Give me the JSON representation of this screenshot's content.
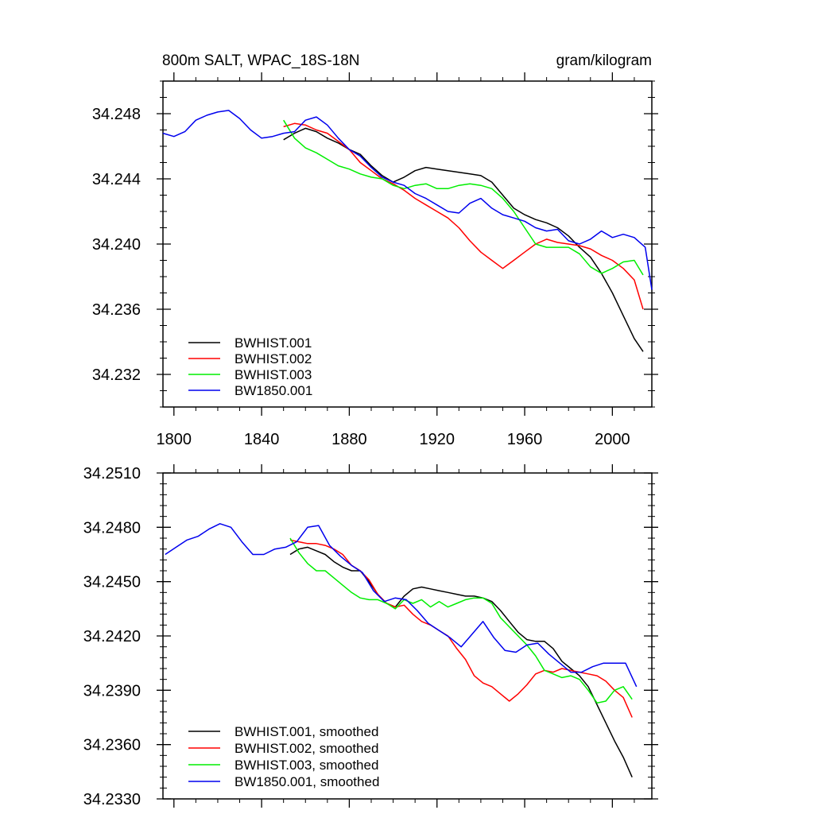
{
  "header": {
    "left": "800m SALT, WPAC_18S-18N",
    "right": "gram/kilogram"
  },
  "chart_data": [
    {
      "type": "line",
      "title": "800m SALT, WPAC_18S-18N",
      "units": "gram/kilogram",
      "xlim": [
        1795,
        2018
      ],
      "ylim": [
        34.23,
        34.25
      ],
      "x_ticks": [
        1800,
        1840,
        1880,
        1920,
        1960,
        2000
      ],
      "x_tick_labels": [
        "1800",
        "1840",
        "1880",
        "1920",
        "1960",
        "2000"
      ],
      "y_ticks": [
        34.232,
        34.236,
        34.24,
        34.244,
        34.248
      ],
      "y_tick_labels": [
        "34.232",
        "34.236",
        "34.240",
        "34.244",
        "34.248"
      ],
      "legend_position": "bottom-left",
      "series": [
        {
          "name": "BWHIST.001",
          "color": "#000000",
          "x": [
            1850,
            1855,
            1860,
            1865,
            1870,
            1875,
            1880,
            1885,
            1890,
            1895,
            1900,
            1905,
            1910,
            1915,
            1920,
            1925,
            1930,
            1935,
            1940,
            1945,
            1950,
            1955,
            1960,
            1965,
            1970,
            1975,
            1980,
            1985,
            1990,
            1995,
            2000,
            2005,
            2010,
            2014
          ],
          "y": [
            34.2464,
            34.2468,
            34.2471,
            34.2469,
            34.2465,
            34.2462,
            34.2458,
            34.2455,
            34.2448,
            34.2442,
            34.2438,
            34.2441,
            34.2445,
            34.2447,
            34.2446,
            34.2445,
            34.2444,
            34.2443,
            34.2442,
            34.2438,
            34.243,
            34.2422,
            34.2418,
            34.2415,
            34.2413,
            34.241,
            34.2405,
            34.2398,
            34.2392,
            34.2382,
            34.237,
            34.2356,
            34.2342,
            34.2334
          ]
        },
        {
          "name": "BWHIST.002",
          "color": "#ff0000",
          "x": [
            1850,
            1855,
            1860,
            1865,
            1870,
            1875,
            1880,
            1885,
            1890,
            1895,
            1900,
            1905,
            1910,
            1915,
            1920,
            1925,
            1930,
            1935,
            1940,
            1945,
            1950,
            1955,
            1960,
            1965,
            1970,
            1975,
            1980,
            1985,
            1990,
            1995,
            2000,
            2005,
            2010,
            2014
          ],
          "y": [
            34.2472,
            34.2474,
            34.2473,
            34.247,
            34.2468,
            34.2463,
            34.2458,
            34.245,
            34.2445,
            34.244,
            34.2437,
            34.2433,
            34.2428,
            34.2424,
            34.242,
            34.2416,
            34.241,
            34.2402,
            34.2395,
            34.239,
            34.2385,
            34.239,
            34.2395,
            34.24,
            34.2403,
            34.2401,
            34.24,
            34.2399,
            34.2397,
            34.2393,
            34.239,
            34.2385,
            34.2378,
            34.236
          ]
        },
        {
          "name": "BWHIST.003",
          "color": "#00ee00",
          "x": [
            1850,
            1855,
            1860,
            1865,
            1870,
            1875,
            1880,
            1885,
            1890,
            1895,
            1900,
            1905,
            1910,
            1915,
            1920,
            1925,
            1930,
            1935,
            1940,
            1945,
            1950,
            1955,
            1960,
            1965,
            1970,
            1975,
            1980,
            1985,
            1990,
            1995,
            2000,
            2005,
            2010,
            2014
          ],
          "y": [
            34.2476,
            34.2465,
            34.2459,
            34.2456,
            34.2452,
            34.2448,
            34.2446,
            34.2443,
            34.2441,
            34.244,
            34.2436,
            34.2434,
            34.2436,
            34.2437,
            34.2434,
            34.2434,
            34.2436,
            34.2437,
            34.2436,
            34.2434,
            34.2428,
            34.242,
            34.241,
            34.24,
            34.2398,
            34.2398,
            34.2398,
            34.2394,
            34.2386,
            34.2382,
            34.2385,
            34.2389,
            34.239,
            34.2381
          ]
        },
        {
          "name": "BW1850.001",
          "color": "#0000ee",
          "x": [
            1795,
            1800,
            1805,
            1810,
            1815,
            1820,
            1825,
            1830,
            1835,
            1840,
            1845,
            1850,
            1855,
            1860,
            1865,
            1870,
            1875,
            1880,
            1885,
            1890,
            1895,
            1900,
            1905,
            1910,
            1915,
            1920,
            1925,
            1930,
            1935,
            1940,
            1945,
            1950,
            1955,
            1960,
            1965,
            1970,
            1975,
            1980,
            1985,
            1990,
            1995,
            2000,
            2005,
            2010,
            2015,
            2018
          ],
          "y": [
            34.2468,
            34.2466,
            34.2469,
            34.2476,
            34.2479,
            34.2481,
            34.2482,
            34.2477,
            34.247,
            34.2465,
            34.2466,
            34.2468,
            34.2469,
            34.2476,
            34.2478,
            34.2473,
            34.2465,
            34.2458,
            34.2454,
            34.2447,
            34.2441,
            34.2438,
            34.2436,
            34.2431,
            34.2428,
            34.2424,
            34.242,
            34.2419,
            34.2425,
            34.2428,
            34.2422,
            34.2418,
            34.2416,
            34.2414,
            34.241,
            34.2408,
            34.2409,
            34.2402,
            34.24,
            34.2403,
            34.2408,
            34.2404,
            34.2406,
            34.2404,
            34.2398,
            34.2372
          ]
        }
      ]
    },
    {
      "type": "line",
      "xlim": [
        1795,
        2018
      ],
      "ylim": [
        34.233,
        34.251
      ],
      "x_ticks": [
        1800,
        1840,
        1880,
        1920,
        1960,
        2000
      ],
      "y_ticks": [
        34.233,
        34.236,
        34.239,
        34.242,
        34.245,
        34.248,
        34.251
      ],
      "y_tick_labels": [
        "34.2330",
        "34.2360",
        "34.2390",
        "34.2420",
        "34.2450",
        "34.2480",
        "34.2510"
      ],
      "legend_position": "bottom-left",
      "series": [
        {
          "name": "BWHIST.001, smoothed",
          "color": "#000000",
          "x": [
            1853,
            1857,
            1861,
            1865,
            1869,
            1873,
            1877,
            1881,
            1885,
            1889,
            1893,
            1897,
            1901,
            1905,
            1909,
            1913,
            1917,
            1921,
            1925,
            1929,
            1933,
            1937,
            1941,
            1945,
            1949,
            1953,
            1957,
            1961,
            1965,
            1969,
            1973,
            1977,
            1981,
            1985,
            1989,
            1993,
            1997,
            2001,
            2005,
            2009
          ],
          "y": [
            34.2465,
            34.2468,
            34.2469,
            34.2467,
            34.2465,
            34.2461,
            34.2458,
            34.2456,
            34.2456,
            34.245,
            34.2443,
            34.2438,
            34.2436,
            34.2442,
            34.2446,
            34.2447,
            34.2446,
            34.2445,
            34.2444,
            34.2443,
            34.2442,
            34.2442,
            34.2441,
            34.2439,
            34.2434,
            34.2428,
            34.2422,
            34.2418,
            34.2417,
            34.2417,
            34.2413,
            34.2406,
            34.2402,
            34.2398,
            34.2392,
            34.2382,
            34.2372,
            34.2362,
            34.2353,
            34.2342
          ]
        },
        {
          "name": "BWHIST.002, smoothed",
          "color": "#ff0000",
          "x": [
            1853,
            1857,
            1861,
            1865,
            1869,
            1873,
            1877,
            1881,
            1885,
            1889,
            1893,
            1897,
            1901,
            1905,
            1909,
            1913,
            1917,
            1921,
            1925,
            1929,
            1933,
            1937,
            1941,
            1945,
            1949,
            1953,
            1957,
            1961,
            1965,
            1969,
            1973,
            1977,
            1981,
            1985,
            1989,
            1993,
            1997,
            2001,
            2005,
            2009
          ],
          "y": [
            34.2473,
            34.2472,
            34.2471,
            34.2471,
            34.247,
            34.2468,
            34.2465,
            34.2459,
            34.2456,
            34.2451,
            34.2443,
            34.2438,
            34.2436,
            34.2437,
            34.2432,
            34.2428,
            34.2426,
            34.2423,
            34.242,
            34.2413,
            34.2407,
            34.2398,
            34.2394,
            34.2392,
            34.2388,
            34.2384,
            34.2388,
            34.2393,
            34.2399,
            34.2401,
            34.24,
            34.2402,
            34.2401,
            34.24,
            34.2399,
            34.2398,
            34.2395,
            34.239,
            34.2386,
            34.2375
          ]
        },
        {
          "name": "BWHIST.003, smoothed",
          "color": "#00ee00",
          "x": [
            1853,
            1857,
            1861,
            1865,
            1869,
            1873,
            1877,
            1881,
            1885,
            1889,
            1893,
            1897,
            1901,
            1905,
            1909,
            1913,
            1917,
            1921,
            1925,
            1929,
            1933,
            1937,
            1941,
            1945,
            1949,
            1953,
            1957,
            1961,
            1965,
            1969,
            1973,
            1977,
            1981,
            1985,
            1989,
            1993,
            1997,
            2001,
            2005,
            2009
          ],
          "y": [
            34.2474,
            34.2466,
            34.246,
            34.2456,
            34.2456,
            34.2452,
            34.2448,
            34.2444,
            34.2441,
            34.244,
            34.244,
            34.2438,
            34.2435,
            34.244,
            34.2438,
            34.244,
            34.2436,
            34.2439,
            34.2436,
            34.2438,
            34.244,
            34.2441,
            34.2441,
            34.2438,
            34.243,
            34.2425,
            34.242,
            34.2415,
            34.2409,
            34.2401,
            34.2399,
            34.2397,
            34.2398,
            34.2396,
            34.239,
            34.2383,
            34.2384,
            34.239,
            34.2392,
            34.2385
          ]
        },
        {
          "name": "BW1850.001, smoothed",
          "color": "#0000ee",
          "x": [
            1796,
            1801,
            1806,
            1811,
            1816,
            1821,
            1826,
            1831,
            1836,
            1841,
            1846,
            1851,
            1856,
            1861,
            1866,
            1871,
            1876,
            1881,
            1886,
            1891,
            1896,
            1901,
            1906,
            1911,
            1916,
            1921,
            1926,
            1931,
            1936,
            1941,
            1946,
            1951,
            1956,
            1961,
            1966,
            1971,
            1976,
            1981,
            1986,
            1991,
            1996,
            2001,
            2006,
            2011
          ],
          "y": [
            34.2465,
            34.2469,
            34.2473,
            34.2475,
            34.2479,
            34.2482,
            34.248,
            34.2472,
            34.2465,
            34.2465,
            34.2468,
            34.2469,
            34.2472,
            34.248,
            34.2481,
            34.247,
            34.2464,
            34.2459,
            34.2455,
            34.2445,
            34.2439,
            34.2441,
            34.244,
            34.2434,
            34.2427,
            34.2423,
            34.2419,
            34.2414,
            34.2421,
            34.2428,
            34.2419,
            34.2412,
            34.2411,
            34.2415,
            34.2416,
            34.241,
            34.2405,
            34.24,
            34.24,
            34.2403,
            34.2405,
            34.2405,
            34.2405,
            34.2392
          ]
        }
      ]
    }
  ]
}
